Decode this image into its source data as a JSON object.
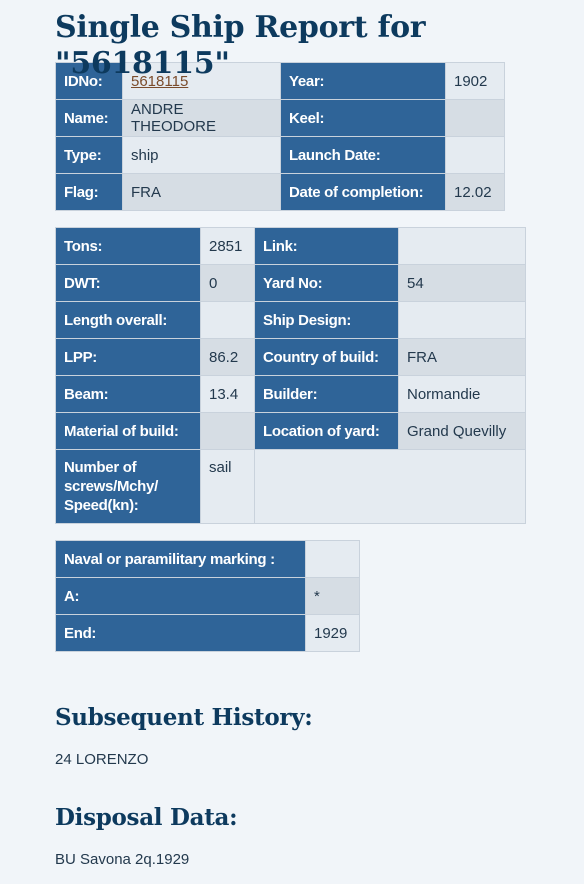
{
  "title": "Single Ship Report for \"5618115\"",
  "table1": {
    "idno_label": "IDNo:",
    "idno": "5618115",
    "year_label": "Year:",
    "year": "1902",
    "name_label": "Name:",
    "name": "ANDRE THEODORE",
    "keel_label": "Keel:",
    "keel": "",
    "type_label": "Type:",
    "type": "ship",
    "launch_label": "Launch Date:",
    "launch": "",
    "flag_label": "Flag:",
    "flag": "FRA",
    "completion_label": "Date of completion:",
    "completion": "12.02"
  },
  "table2": {
    "tons_label": "Tons:",
    "tons": "2851",
    "link_label": "Link:",
    "link": "",
    "dwt_label": "DWT:",
    "dwt": "0",
    "yard_label": "Yard No:",
    "yard": "54",
    "length_label": "Length overall:",
    "length": "",
    "design_label": "Ship Design:",
    "design": "",
    "lpp_label": "LPP:",
    "lpp": "86.2",
    "country_label": "Country of build:",
    "country": "FRA",
    "beam_label": "Beam:",
    "beam": "13.4",
    "builder_label": "Builder:",
    "builder": "Normandie",
    "material_label": "Material of build:",
    "material": "",
    "location_label": "Location of yard:",
    "location": "Grand Quevilly",
    "screws_label": "Number of screws/Mchy/ Speed(kn):",
    "screws": "sail"
  },
  "table3": {
    "naval_label": "Naval or paramilitary marking :",
    "naval": "",
    "a_label": "A:",
    "a": "*",
    "end_label": "End:",
    "end": "1929"
  },
  "history": {
    "title": "Subsequent History:",
    "text": "24 LORENZO"
  },
  "disposal": {
    "title": "Disposal Data:",
    "text": "BU Savona 2q.1929"
  }
}
